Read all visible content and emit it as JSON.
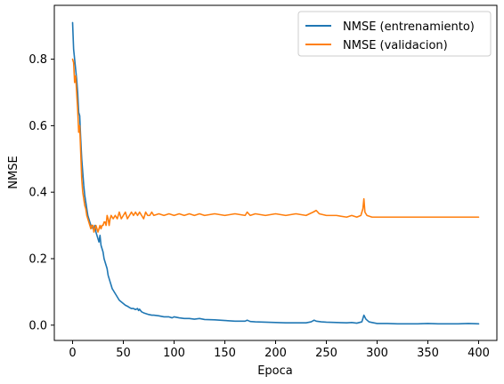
{
  "chart_data": {
    "type": "line",
    "title": "",
    "xlabel": "Epoca",
    "ylabel": "NMSE",
    "xlim": [
      -18,
      418
    ],
    "ylim": [
      -0.046,
      0.962
    ],
    "xticks": [
      0,
      50,
      100,
      150,
      200,
      250,
      300,
      350,
      400
    ],
    "yticks": [
      0.0,
      0.2,
      0.4,
      0.6,
      0.8
    ],
    "ytick_labels": [
      "0.0",
      "0.2",
      "0.4",
      "0.6",
      "0.8"
    ],
    "grid": false,
    "legend_position": "top-right",
    "series": [
      {
        "name": "NMSE (entrenamiento)",
        "color": "#1f77b4",
        "x": [
          0,
          1,
          2,
          3,
          4,
          5,
          6,
          7,
          8,
          9,
          10,
          11,
          12,
          13,
          14,
          15,
          16,
          17,
          18,
          19,
          20,
          21,
          22,
          23,
          24,
          25,
          26,
          27,
          28,
          29,
          30,
          31,
          32,
          33,
          34,
          35,
          36,
          37,
          38,
          39,
          40,
          42,
          44,
          46,
          48,
          50,
          52,
          54,
          56,
          58,
          60,
          62,
          64,
          65,
          66,
          68,
          70,
          72,
          75,
          78,
          80,
          85,
          90,
          95,
          98,
          100,
          105,
          110,
          115,
          120,
          125,
          130,
          140,
          150,
          160,
          170,
          172,
          175,
          180,
          190,
          200,
          210,
          220,
          230,
          235,
          238,
          240,
          245,
          250,
          260,
          270,
          275,
          280,
          285,
          287,
          289,
          292,
          295,
          300,
          310,
          320,
          330,
          340,
          350,
          360,
          370,
          380,
          390,
          400
        ],
        "y": [
          0.91,
          0.83,
          0.8,
          0.77,
          0.74,
          0.7,
          0.64,
          0.63,
          0.56,
          0.5,
          0.46,
          0.42,
          0.39,
          0.37,
          0.35,
          0.33,
          0.32,
          0.31,
          0.3,
          0.3,
          0.29,
          0.29,
          0.3,
          0.28,
          0.27,
          0.26,
          0.25,
          0.27,
          0.24,
          0.23,
          0.22,
          0.2,
          0.19,
          0.18,
          0.17,
          0.15,
          0.14,
          0.13,
          0.12,
          0.11,
          0.105,
          0.095,
          0.085,
          0.075,
          0.07,
          0.065,
          0.06,
          0.057,
          0.053,
          0.05,
          0.05,
          0.047,
          0.05,
          0.044,
          0.048,
          0.04,
          0.037,
          0.035,
          0.032,
          0.03,
          0.03,
          0.028,
          0.025,
          0.025,
          0.022,
          0.025,
          0.022,
          0.02,
          0.02,
          0.018,
          0.02,
          0.017,
          0.016,
          0.014,
          0.012,
          0.012,
          0.015,
          0.011,
          0.01,
          0.009,
          0.008,
          0.007,
          0.007,
          0.007,
          0.01,
          0.015,
          0.012,
          0.01,
          0.009,
          0.008,
          0.007,
          0.008,
          0.006,
          0.01,
          0.03,
          0.018,
          0.01,
          0.008,
          0.005,
          0.005,
          0.004,
          0.004,
          0.004,
          0.005,
          0.004,
          0.004,
          0.004,
          0.005,
          0.004
        ]
      },
      {
        "name": "NMSE (validacion)",
        "color": "#ff7f0e",
        "x": [
          0,
          1,
          2,
          3,
          4,
          5,
          6,
          7,
          8,
          9,
          10,
          11,
          12,
          13,
          14,
          15,
          16,
          17,
          18,
          19,
          20,
          21,
          22,
          23,
          24,
          25,
          26,
          27,
          28,
          29,
          30,
          31,
          32,
          33,
          34,
          35,
          36,
          37,
          38,
          40,
          42,
          44,
          46,
          48,
          50,
          52,
          54,
          56,
          58,
          60,
          62,
          64,
          66,
          68,
          70,
          72,
          74,
          76,
          78,
          80,
          85,
          90,
          95,
          100,
          105,
          110,
          115,
          120,
          125,
          130,
          140,
          150,
          160,
          170,
          172,
          175,
          180,
          190,
          200,
          210,
          220,
          230,
          237,
          240,
          243,
          250,
          260,
          270,
          275,
          280,
          284,
          286,
          287,
          288,
          290,
          295,
          300,
          310,
          320,
          330,
          340,
          350,
          360,
          370,
          380,
          390,
          400
        ],
        "y": [
          0.8,
          0.79,
          0.73,
          0.75,
          0.7,
          0.65,
          0.58,
          0.6,
          0.52,
          0.44,
          0.4,
          0.38,
          0.36,
          0.35,
          0.33,
          0.32,
          0.31,
          0.3,
          0.29,
          0.3,
          0.3,
          0.28,
          0.29,
          0.3,
          0.29,
          0.28,
          0.29,
          0.3,
          0.29,
          0.3,
          0.3,
          0.31,
          0.31,
          0.3,
          0.33,
          0.32,
          0.3,
          0.32,
          0.33,
          0.32,
          0.33,
          0.32,
          0.34,
          0.32,
          0.33,
          0.34,
          0.32,
          0.33,
          0.34,
          0.33,
          0.34,
          0.33,
          0.34,
          0.33,
          0.32,
          0.34,
          0.33,
          0.33,
          0.34,
          0.33,
          0.335,
          0.33,
          0.335,
          0.33,
          0.335,
          0.33,
          0.335,
          0.33,
          0.335,
          0.33,
          0.335,
          0.33,
          0.335,
          0.33,
          0.34,
          0.33,
          0.335,
          0.33,
          0.335,
          0.33,
          0.335,
          0.33,
          0.34,
          0.345,
          0.335,
          0.33,
          0.33,
          0.325,
          0.33,
          0.325,
          0.33,
          0.35,
          0.38,
          0.34,
          0.33,
          0.325,
          0.325,
          0.325,
          0.325,
          0.325,
          0.325,
          0.325,
          0.325,
          0.325,
          0.325,
          0.325,
          0.325
        ]
      }
    ]
  }
}
